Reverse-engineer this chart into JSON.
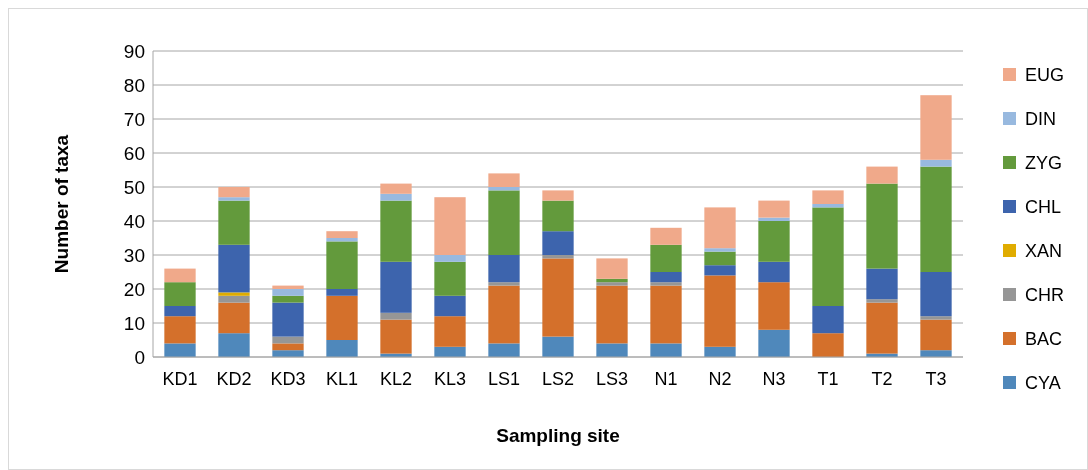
{
  "chart_data": {
    "type": "bar",
    "stacked": true,
    "xlabel": "Sampling site",
    "ylabel": "Number of taxa",
    "categories": [
      "KD1",
      "KD2",
      "KD3",
      "KL1",
      "KL2",
      "KL3",
      "LS1",
      "LS2",
      "LS3",
      "N1",
      "N2",
      "N3",
      "T1",
      "T2",
      "T3"
    ],
    "series": [
      {
        "name": "CYA",
        "color": "#4f88bb",
        "values": [
          4,
          7,
          2,
          5,
          1,
          3,
          4,
          6,
          4,
          4,
          3,
          8,
          0,
          1,
          2
        ]
      },
      {
        "name": "BAC",
        "color": "#d4702b",
        "values": [
          8,
          9,
          2,
          13,
          10,
          9,
          17,
          23,
          17,
          17,
          21,
          14,
          7,
          15,
          9
        ]
      },
      {
        "name": "CHR",
        "color": "#969696",
        "values": [
          0,
          2,
          2,
          0,
          2,
          0,
          1,
          1,
          1,
          1,
          0,
          0,
          0,
          1,
          1
        ]
      },
      {
        "name": "XAN",
        "color": "#e0ac00",
        "values": [
          0,
          1,
          0,
          0,
          0,
          0,
          0,
          0,
          0,
          0,
          0,
          0,
          0,
          0,
          0
        ]
      },
      {
        "name": "CHL",
        "color": "#3d64ad",
        "values": [
          3,
          14,
          10,
          2,
          15,
          6,
          8,
          7,
          0,
          3,
          3,
          6,
          8,
          9,
          13
        ]
      },
      {
        "name": "ZYG",
        "color": "#639a3c",
        "values": [
          7,
          13,
          2,
          14,
          18,
          10,
          19,
          9,
          1,
          8,
          4,
          12,
          29,
          25,
          31
        ]
      },
      {
        "name": "DIN",
        "color": "#98b9df",
        "values": [
          0,
          1,
          2,
          1,
          2,
          2,
          1,
          0,
          0,
          0,
          1,
          1,
          1,
          0,
          2
        ]
      },
      {
        "name": "EUG",
        "color": "#f0a98a",
        "values": [
          4,
          3,
          1,
          2,
          3,
          17,
          4,
          3,
          6,
          5,
          12,
          5,
          4,
          5,
          19
        ]
      }
    ],
    "ylim": [
      0,
      90
    ],
    "yticks": [
      0,
      10,
      20,
      30,
      40,
      50,
      60,
      70,
      80,
      90
    ],
    "grid": "y",
    "legend": "right"
  }
}
